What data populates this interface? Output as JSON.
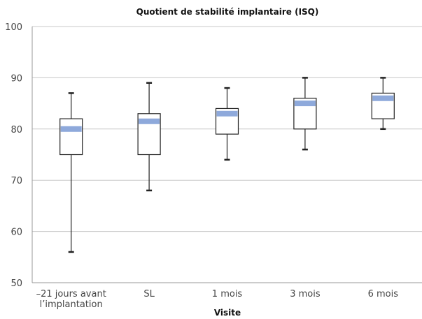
{
  "chart_data": {
    "type": "boxplot",
    "title": "Quotient de stabilité implantaire (ISQ)",
    "xlabel": "Visite",
    "ylabel": "",
    "ylim": [
      50,
      100
    ],
    "yticks": [
      50,
      60,
      70,
      80,
      90,
      100
    ],
    "grid": true,
    "categories": [
      [
        "–21 jours avant",
        "l’implantation"
      ],
      [
        "SL"
      ],
      [
        "1 mois"
      ],
      [
        "3 mois"
      ],
      [
        "6 mois"
      ]
    ],
    "boxes": [
      {
        "min": 56,
        "q1": 75,
        "median": 80,
        "q3": 82,
        "max": 87
      },
      {
        "min": 68,
        "q1": 75,
        "median": 81.5,
        "q3": 83,
        "max": 89
      },
      {
        "min": 74,
        "q1": 79,
        "median": 83,
        "q3": 84,
        "max": 88
      },
      {
        "min": 76,
        "q1": 80,
        "median": 85,
        "q3": 86,
        "max": 90
      },
      {
        "min": 80,
        "q1": 82,
        "median": 86,
        "q3": 87,
        "max": 90
      }
    ],
    "colors": {
      "median_band": "#8ea9db",
      "box_fill": "#ffffff",
      "box_stroke": "#222222",
      "whisker": "#222222"
    }
  }
}
